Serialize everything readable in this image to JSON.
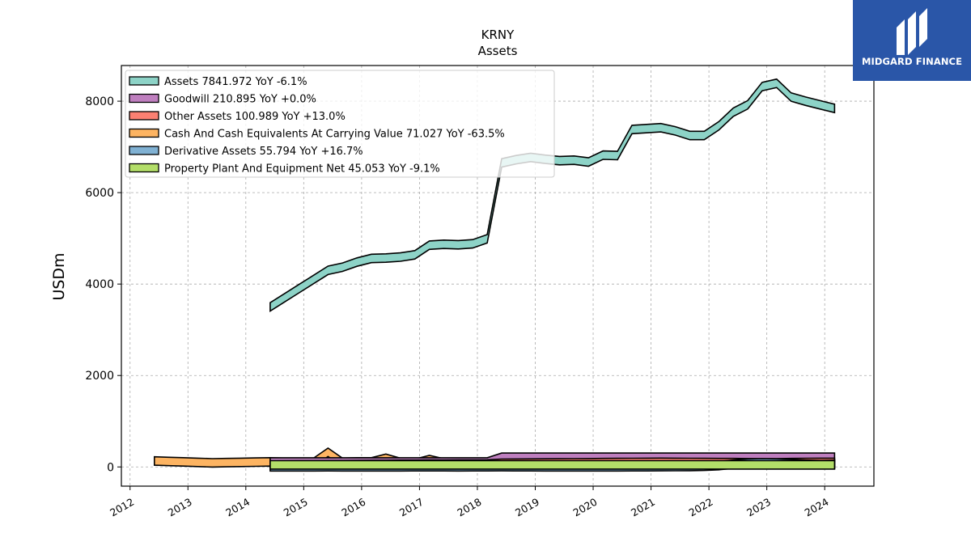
{
  "chart_data": {
    "type": "area",
    "title": "KRNY",
    "subtitle": "Assets",
    "ylabel": "USDm",
    "xlabel": "",
    "xlim": [
      2011.85,
      2024.85
    ],
    "ylim": [
      -420,
      8780
    ],
    "yticks": [
      0,
      2000,
      4000,
      6000,
      8000
    ],
    "xticks": [
      "2012",
      "2013",
      "2014",
      "2015",
      "2016",
      "2017",
      "2018",
      "2019",
      "2020",
      "2021",
      "2022",
      "2023",
      "2024"
    ],
    "grid": true,
    "legend_position": "top-left",
    "series": [
      {
        "name": "Assets",
        "legend_label": "Assets  7841.972 YoY -6.1%",
        "color": "#8dd3c7",
        "x": [
          2014.42,
          2014.67,
          2014.92,
          2015.17,
          2015.42,
          2015.67,
          2015.92,
          2016.17,
          2016.42,
          2016.67,
          2016.92,
          2017.17,
          2017.42,
          2017.67,
          2017.92,
          2018.17,
          2018.42,
          2018.67,
          2018.92,
          2019.17,
          2019.42,
          2019.67,
          2019.92,
          2020.17,
          2020.42,
          2020.67,
          2020.92,
          2021.17,
          2021.42,
          2021.67,
          2021.92,
          2022.17,
          2022.42,
          2022.67,
          2022.92,
          2023.17,
          2023.42,
          2023.67,
          2023.92,
          2024.17
        ],
        "values": [
          3500,
          3700,
          3900,
          4100,
          4300,
          4370,
          4480,
          4560,
          4570,
          4590,
          4640,
          4850,
          4870,
          4860,
          4880,
          4990,
          6650,
          6720,
          6770,
          6730,
          6700,
          6710,
          6670,
          6820,
          6810,
          7380,
          7400,
          7420,
          7350,
          7250,
          7250,
          7460,
          7760,
          7920,
          8320,
          8390,
          8090,
          8000,
          7920,
          7842
        ]
      },
      {
        "name": "Goodwill",
        "legend_label": "Goodwill  210.895 YoY +0.0%",
        "color": "#bf7fbf",
        "x": [
          2014.42,
          2014.67,
          2014.92,
          2015.17,
          2015.42,
          2015.67,
          2015.92,
          2016.17,
          2016.42,
          2016.67,
          2016.92,
          2017.17,
          2017.42,
          2017.67,
          2017.92,
          2018.17,
          2018.42,
          2018.67,
          2018.92,
          2019.17,
          2019.42,
          2019.67,
          2019.92,
          2020.17,
          2020.42,
          2020.67,
          2020.92,
          2021.17,
          2021.42,
          2021.67,
          2021.92,
          2022.17,
          2022.42,
          2022.67,
          2022.92,
          2023.17,
          2023.42,
          2023.67,
          2023.92,
          2024.17
        ],
        "values": [
          108.6,
          108.6,
          108.6,
          108.6,
          108.6,
          108.6,
          108.6,
          108.6,
          108.6,
          108.6,
          108.6,
          108.6,
          108.6,
          108.6,
          108.6,
          108.6,
          210.9,
          210.9,
          210.9,
          210.9,
          210.9,
          210.9,
          210.9,
          210.9,
          210.9,
          210.9,
          210.9,
          210.9,
          210.9,
          210.9,
          210.9,
          210.9,
          210.9,
          210.9,
          210.9,
          210.9,
          210.9,
          210.9,
          210.9,
          210.9
        ]
      },
      {
        "name": "Other Assets",
        "legend_label": "Other Assets  100.989 YoY +13.0%",
        "color": "#fb8072",
        "x": [
          2014.42,
          2014.67,
          2014.92,
          2015.17,
          2015.42,
          2015.67,
          2015.92,
          2016.17,
          2016.42,
          2016.67,
          2016.92,
          2017.17,
          2017.42,
          2017.67,
          2017.92,
          2018.17,
          2018.42,
          2018.67,
          2018.92,
          2019.17,
          2019.42,
          2019.67,
          2019.92,
          2020.17,
          2020.42,
          2020.67,
          2020.92,
          2021.17,
          2021.42,
          2021.67,
          2021.92,
          2022.17,
          2022.42,
          2022.67,
          2022.92,
          2023.17,
          2023.42,
          2023.67,
          2023.92,
          2024.17
        ],
        "values": [
          40,
          42,
          44,
          45,
          47,
          48,
          50,
          52,
          55,
          57,
          58,
          60,
          60,
          62,
          63,
          65,
          80,
          82,
          85,
          86,
          88,
          90,
          92,
          95,
          96,
          98,
          100,
          102,
          100,
          98,
          96,
          95,
          94,
          92,
          90,
          89,
          95,
          99,
          100,
          101
        ]
      },
      {
        "name": "Cash And Cash Equivalents At Carrying Value",
        "legend_label": "Cash And Cash Equivalents At Carrying Value  71.027 YoY -63.5%",
        "color": "#fdb462",
        "x": [
          2012.42,
          2012.67,
          2012.92,
          2013.17,
          2013.42,
          2013.67,
          2013.92,
          2014.17,
          2014.42,
          2014.67,
          2014.92,
          2015.17,
          2015.42,
          2015.67,
          2015.92,
          2016.17,
          2016.42,
          2016.67,
          2016.92,
          2017.17,
          2017.42,
          2017.67,
          2017.92,
          2018.17,
          2018.42,
          2018.67,
          2018.92,
          2019.17,
          2019.42,
          2019.67,
          2019.92,
          2020.17,
          2020.42,
          2020.67,
          2020.92,
          2021.17,
          2021.42,
          2021.67,
          2021.92,
          2022.17,
          2022.42,
          2022.67,
          2022.92,
          2023.17,
          2023.42,
          2023.67,
          2023.92,
          2024.17
        ],
        "values": [
          130,
          120,
          110,
          100,
          90,
          95,
          100,
          105,
          110,
          100,
          80,
          100,
          320,
          100,
          110,
          110,
          190,
          100,
          80,
          160,
          90,
          70,
          70,
          80,
          70,
          90,
          80,
          60,
          80,
          130,
          80,
          80,
          190,
          140,
          120,
          110,
          90,
          100,
          90,
          110,
          100,
          130,
          110,
          100,
          200,
          180,
          195,
          71
        ]
      },
      {
        "name": "Derivative Assets",
        "legend_label": "Derivative Assets  55.794 YoY +16.7%",
        "color": "#80b1d3",
        "x": [
          2014.42,
          2014.67,
          2014.92,
          2015.17,
          2015.42,
          2015.67,
          2015.92,
          2016.17,
          2016.42,
          2016.67,
          2016.92,
          2017.17,
          2017.42,
          2017.67,
          2017.92,
          2018.17,
          2018.42,
          2018.67,
          2018.92,
          2019.17,
          2019.42,
          2019.67,
          2019.92,
          2020.17,
          2020.42,
          2020.67,
          2020.92,
          2021.17,
          2021.42,
          2021.67,
          2021.92,
          2022.17,
          2022.42,
          2022.67,
          2022.92,
          2023.17,
          2023.42,
          2023.67,
          2023.92,
          2024.17
        ],
        "values": [
          2,
          3,
          2,
          3,
          4,
          2,
          3,
          3,
          2,
          3,
          4,
          5,
          4,
          3,
          4,
          5,
          6,
          5,
          4,
          3,
          2,
          3,
          2,
          2,
          3,
          4,
          5,
          6,
          8,
          10,
          15,
          30,
          60,
          80,
          90,
          85,
          70,
          60,
          50,
          56
        ]
      },
      {
        "name": "Property Plant And Equipment Net",
        "legend_label": "Property Plant And Equipment Net  45.053 YoY -9.1%",
        "color": "#b3de69",
        "x": [
          2014.42,
          2014.67,
          2014.92,
          2015.17,
          2015.42,
          2015.67,
          2015.92,
          2016.17,
          2016.42,
          2016.67,
          2016.92,
          2017.17,
          2017.42,
          2017.67,
          2017.92,
          2018.17,
          2018.42,
          2018.67,
          2018.92,
          2019.17,
          2019.42,
          2019.67,
          2019.92,
          2020.17,
          2020.42,
          2020.67,
          2020.92,
          2021.17,
          2021.42,
          2021.67,
          2021.92,
          2022.17,
          2022.42,
          2022.67,
          2022.92,
          2023.17,
          2023.42,
          2023.67,
          2023.92,
          2024.17
        ],
        "values": [
          45,
          45,
          45,
          45,
          45,
          45,
          45,
          45,
          45,
          45,
          45,
          45,
          45,
          45,
          45,
          45,
          45,
          45,
          45,
          45,
          45,
          45,
          45,
          45,
          45,
          45,
          45,
          45,
          45,
          45,
          45,
          45,
          45,
          45,
          45,
          45,
          45,
          45,
          45,
          45
        ]
      }
    ]
  },
  "logo": {
    "text": "MIDGARD FINANCE",
    "background": "#2a56a8",
    "icon": "midgard-logo-mark"
  }
}
